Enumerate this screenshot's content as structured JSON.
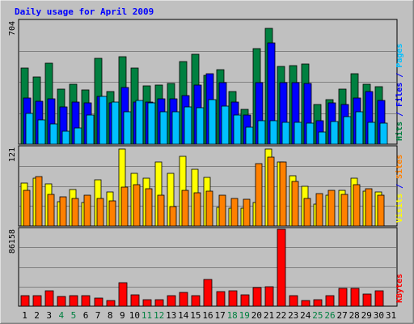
{
  "chart_data": {
    "type": "bar",
    "title": "Daily usage for April 2009",
    "colors": {
      "background": "#c0c0c0",
      "title": "#0000ff",
      "hits": "#008040",
      "files": "#0000ff",
      "pages": "#00c0ff",
      "visits": "#ffff00",
      "sites": "#ff8000",
      "kbytes": "#ff0000",
      "weekend_day": "#008040"
    },
    "x": [
      "1",
      "2",
      "3",
      "4",
      "5",
      "6",
      "7",
      "8",
      "9",
      "10",
      "11",
      "12",
      "13",
      "14",
      "15",
      "16",
      "17",
      "18",
      "19",
      "20",
      "21",
      "22",
      "23",
      "24",
      "25",
      "26",
      "27",
      "28",
      "29",
      "30",
      "31"
    ],
    "weekend_days": [
      "4",
      "5",
      "11",
      "12",
      "18",
      "19",
      "25",
      "26"
    ],
    "panels": [
      {
        "id": "top",
        "ymax_label": "704",
        "ymax": 704,
        "right_label_parts": [
          {
            "text": "Hits",
            "color_key": "hits"
          },
          {
            "text": " / ",
            "color_key": "title"
          },
          {
            "text": "Files",
            "color_key": "files"
          },
          {
            "text": " / ",
            "color_key": "title"
          },
          {
            "text": "Pages",
            "color_key": "pages"
          }
        ],
        "series": [
          {
            "name": "Hits",
            "color_key": "hits",
            "values": [
              434,
              383,
              461,
              314,
              343,
              310,
              489,
              301,
              498,
              436,
              332,
              338,
              349,
              473,
              512,
              394,
              428,
              299,
              198,
              547,
              662,
              445,
              450,
              458,
              227,
              256,
              317,
              403,
              342,
              330,
              0
            ]
          },
          {
            "name": "Files",
            "color_key": "files",
            "values": [
              266,
              245,
              258,
              212,
              240,
              235,
              274,
              235,
              323,
              240,
              240,
              259,
              261,
              280,
              339,
              404,
              351,
              239,
              166,
              351,
              581,
              350,
              353,
              348,
              132,
              236,
              227,
              266,
              300,
              248,
              0
            ]
          },
          {
            "name": "Pages",
            "color_key": "pages",
            "values": [
              176,
              138,
              114,
              76,
              91,
              168,
              271,
              240,
              184,
              251,
              235,
              186,
              186,
              211,
              207,
              256,
              217,
              168,
              99,
              133,
              133,
              127,
              125,
              120,
              70,
              130,
              156,
              186,
              123,
              122,
              0
            ]
          }
        ]
      },
      {
        "id": "mid",
        "ymax_label": "121",
        "ymax": 121,
        "right_label_parts": [
          {
            "text": "Visits",
            "color_key": "visits"
          },
          {
            "text": " / ",
            "color_key": "title"
          },
          {
            "text": "Sites",
            "color_key": "sites"
          }
        ],
        "series": [
          {
            "name": "Visits",
            "color_key": "visits",
            "values": [
              66,
              73,
              65,
              37,
              56,
              36,
              71,
              53,
              119,
              81,
              73,
              99,
              81,
              107,
              87,
              75,
              29,
              27,
              27,
              36,
              119,
              98,
              77,
              61,
              34,
              48,
              55,
              73,
              54,
              53,
              0
            ]
          },
          {
            "name": "Sites",
            "color_key": "sites",
            "values": [
              55,
              76,
              49,
              45,
              43,
              47,
              43,
              39,
              60,
              63,
              57,
              47,
              30,
              55,
              51,
              54,
              47,
              42,
              41,
              96,
              106,
              98,
              68,
              43,
              50,
              55,
              49,
              63,
              58,
              48,
              0
            ]
          }
        ]
      },
      {
        "id": "bot",
        "ymax_label": "86158",
        "ymax": 86158,
        "right_label_parts": [
          {
            "text": "KBytes",
            "color_key": "kbytes"
          }
        ],
        "series": [
          {
            "name": "KBytes",
            "color_key": "kbytes",
            "values": [
              12000,
              12000,
              17500,
              11000,
              11600,
              11600,
              9200,
              6000,
              26500,
              12900,
              7000,
              7000,
              11600,
              15000,
              11600,
              30000,
              16200,
              17500,
              13000,
              21000,
              22000,
              86158,
              12000,
              6800,
              7000,
              12000,
              19700,
              19700,
              13800,
              17500,
              0
            ]
          }
        ]
      }
    ]
  }
}
